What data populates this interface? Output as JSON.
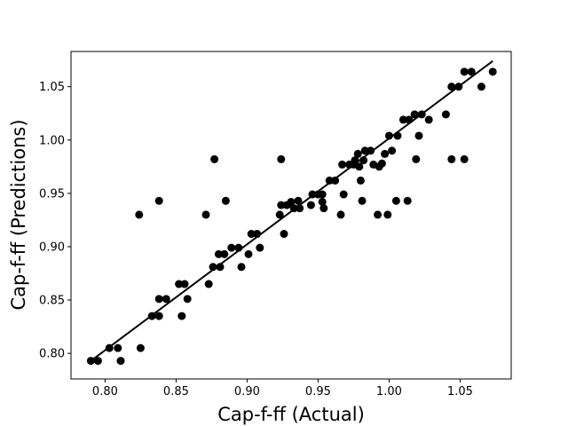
{
  "chart_data": {
    "type": "scatter",
    "title": "",
    "xlabel": "Cap-f-ff (Actual)",
    "ylabel": "Cap-f-ff (Predictions)",
    "xlim": [
      0.776,
      1.086
    ],
    "ylim": [
      0.776,
      1.083
    ],
    "xticks": [
      "0.80",
      "0.85",
      "0.90",
      "0.95",
      "1.00",
      "1.05"
    ],
    "yticks": [
      "0.80",
      "0.85",
      "0.90",
      "0.95",
      "1.00",
      "1.05"
    ],
    "grid": false,
    "legend": "none",
    "point_color": "#000000",
    "line_color": "#000000",
    "fit_line": {
      "x": [
        0.79,
        1.073
      ],
      "y": [
        0.793,
        1.074
      ]
    },
    "series": [
      {
        "points": [
          [
            0.79,
            0.793
          ],
          [
            0.795,
            0.793
          ],
          [
            0.803,
            0.805
          ],
          [
            0.809,
            0.805
          ],
          [
            0.811,
            0.793
          ],
          [
            0.824,
            0.93
          ],
          [
            0.825,
            0.805
          ],
          [
            0.833,
            0.835
          ],
          [
            0.838,
            0.835
          ],
          [
            0.838,
            0.851
          ],
          [
            0.838,
            0.943
          ],
          [
            0.843,
            0.851
          ],
          [
            0.852,
            0.865
          ],
          [
            0.854,
            0.835
          ],
          [
            0.856,
            0.865
          ],
          [
            0.858,
            0.851
          ],
          [
            0.871,
            0.93
          ],
          [
            0.873,
            0.865
          ],
          [
            0.876,
            0.881
          ],
          [
            0.877,
            0.982
          ],
          [
            0.88,
            0.893
          ],
          [
            0.881,
            0.881
          ],
          [
            0.884,
            0.893
          ],
          [
            0.885,
            0.943
          ],
          [
            0.889,
            0.899
          ],
          [
            0.894,
            0.899
          ],
          [
            0.896,
            0.881
          ],
          [
            0.901,
            0.893
          ],
          [
            0.903,
            0.912
          ],
          [
            0.907,
            0.912
          ],
          [
            0.909,
            0.899
          ],
          [
            0.923,
            0.93
          ],
          [
            0.924,
            0.939
          ],
          [
            0.924,
            0.982
          ],
          [
            0.926,
            0.912
          ],
          [
            0.928,
            0.939
          ],
          [
            0.931,
            0.942
          ],
          [
            0.933,
            0.936
          ],
          [
            0.936,
            0.943
          ],
          [
            0.937,
            0.936
          ],
          [
            0.945,
            0.939
          ],
          [
            0.946,
            0.949
          ],
          [
            0.95,
            0.949
          ],
          [
            0.953,
            0.942
          ],
          [
            0.954,
            0.936
          ],
          [
            0.953,
            0.949
          ],
          [
            0.958,
            0.962
          ],
          [
            0.962,
            0.962
          ],
          [
            0.966,
            0.93
          ],
          [
            0.967,
            0.977
          ],
          [
            0.968,
            0.949
          ],
          [
            0.972,
            0.977
          ],
          [
            0.975,
            0.977
          ],
          [
            0.976,
            0.981
          ],
          [
            0.978,
            0.987
          ],
          [
            0.979,
            0.975
          ],
          [
            0.98,
            0.962
          ],
          [
            0.981,
            0.943
          ],
          [
            0.982,
            0.981
          ],
          [
            0.983,
            0.99
          ],
          [
            0.987,
            0.99
          ],
          [
            0.989,
            0.977
          ],
          [
            0.992,
            0.93
          ],
          [
            0.993,
            0.975
          ],
          [
            0.995,
            0.978
          ],
          [
            0.997,
            0.987
          ],
          [
            0.999,
            0.93
          ],
          [
            1.0,
            1.004
          ],
          [
            1.002,
            0.99
          ],
          [
            1.005,
            0.943
          ],
          [
            1.006,
            1.004
          ],
          [
            1.01,
            1.019
          ],
          [
            1.013,
            0.943
          ],
          [
            1.014,
            1.019
          ],
          [
            1.018,
            1.024
          ],
          [
            1.019,
            0.982
          ],
          [
            1.021,
            1.004
          ],
          [
            1.023,
            1.024
          ],
          [
            1.028,
            1.019
          ],
          [
            1.04,
            1.024
          ],
          [
            1.044,
            1.05
          ],
          [
            1.044,
            0.982
          ],
          [
            1.049,
            1.05
          ],
          [
            1.053,
            1.064
          ],
          [
            1.053,
            0.982
          ],
          [
            1.058,
            1.064
          ],
          [
            1.065,
            1.05
          ],
          [
            1.073,
            1.064
          ]
        ]
      }
    ]
  }
}
